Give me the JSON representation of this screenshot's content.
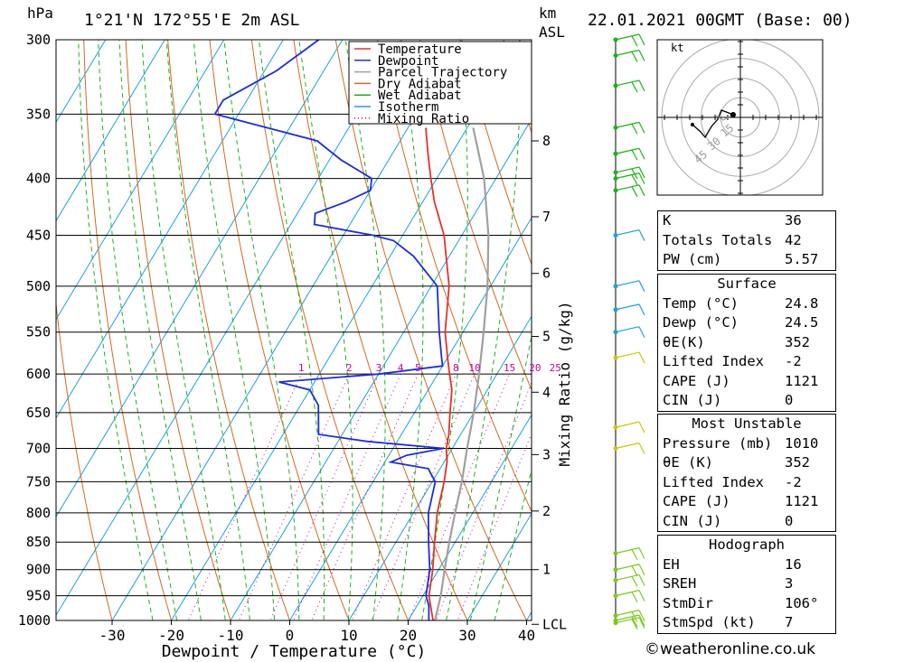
{
  "header": {
    "location": "1°21'N  172°55'E  2m  ASL",
    "datetime": "22.01.2021  00GMT  (Base: 00)",
    "left_unit": "hPa",
    "right_unit_top": "km",
    "right_unit_bottom": "ASL"
  },
  "colors": {
    "temperature": "#e8302a",
    "dewpoint": "#1b2fd8",
    "parcel": "#a0a0a0",
    "dry_adiabat": "#d2691e",
    "wet_adiabat": "#19b219",
    "isotherm": "#1ca0dc",
    "mixing_ratio": "#c000a0"
  },
  "chart_data": {
    "type": "line",
    "subtype": "skew-T log-p sounding",
    "xlabel": "Dewpoint / Temperature (°C)",
    "ylabel_left": "hPa",
    "ylabel_right": "Mixing Ratio (g/kg)",
    "xlim": [
      -40,
      40
    ],
    "ylim": [
      1000,
      300
    ],
    "pressure_ticks": [
      300,
      350,
      400,
      450,
      500,
      550,
      600,
      650,
      700,
      750,
      800,
      850,
      900,
      950,
      1000
    ],
    "temperature_ticks": [
      -30,
      -20,
      -10,
      0,
      10,
      20,
      30,
      40
    ],
    "km_ticks": [
      {
        "label": "8",
        "p": 370
      },
      {
        "label": "7",
        "p": 433
      },
      {
        "label": "6",
        "p": 487
      },
      {
        "label": "5",
        "p": 555
      },
      {
        "label": "4",
        "p": 623
      },
      {
        "label": "3",
        "p": 709
      },
      {
        "label": "2",
        "p": 797
      },
      {
        "label": "1",
        "p": 900
      },
      {
        "label": "LCL",
        "p": 1008
      }
    ],
    "mixing_ratio_labels": [
      "1",
      "2",
      "3",
      "4",
      "5",
      "8",
      "10",
      "15",
      "20",
      "25"
    ],
    "mixing_ratio_values": [
      1,
      2,
      3,
      4,
      5,
      8,
      10,
      15,
      20,
      25
    ],
    "legend": [
      "Temperature",
      "Dewpoint",
      "Parcel Trajectory",
      "Dry Adiabat",
      "Wet Adiabat",
      "Isotherm",
      "Mixing Ratio"
    ],
    "series": [
      {
        "name": "Temperature",
        "points": [
          [
            1010,
            24.8
          ],
          [
            1000,
            24.2
          ],
          [
            950,
            21
          ],
          [
            900,
            19
          ],
          [
            850,
            16.5
          ],
          [
            800,
            14
          ],
          [
            750,
            12
          ],
          [
            720,
            10.5
          ],
          [
            700,
            9
          ],
          [
            680,
            8
          ],
          [
            650,
            6
          ],
          [
            620,
            4
          ],
          [
            600,
            2
          ],
          [
            580,
            0
          ],
          [
            550,
            -3
          ],
          [
            500,
            -7
          ],
          [
            450,
            -13
          ],
          [
            420,
            -18
          ],
          [
            400,
            -21
          ],
          [
            380,
            -24
          ],
          [
            360,
            -27
          ]
        ]
      },
      {
        "name": "Dewpoint",
        "points": [
          [
            1010,
            24.5
          ],
          [
            1000,
            23.5
          ],
          [
            970,
            22
          ],
          [
            950,
            20.5
          ],
          [
            900,
            18.5
          ],
          [
            850,
            15.5
          ],
          [
            800,
            12.5
          ],
          [
            750,
            10.5
          ],
          [
            730,
            8
          ],
          [
            720,
            1
          ],
          [
            710,
            3
          ],
          [
            700,
            8.5
          ],
          [
            690,
            -5
          ],
          [
            680,
            -14
          ],
          [
            640,
            -17
          ],
          [
            620,
            -20
          ],
          [
            610,
            -26
          ],
          [
            600,
            -10
          ],
          [
            590,
            0
          ],
          [
            580,
            -1
          ],
          [
            550,
            -4
          ],
          [
            500,
            -9
          ],
          [
            470,
            -16
          ],
          [
            455,
            -21
          ],
          [
            450,
            -25
          ],
          [
            440,
            -36
          ],
          [
            430,
            -37
          ],
          [
            420,
            -33
          ],
          [
            410,
            -30
          ],
          [
            400,
            -31
          ],
          [
            385,
            -38
          ],
          [
            370,
            -44
          ],
          [
            350,
            -64
          ],
          [
            340,
            -64
          ],
          [
            320,
            -58
          ],
          [
            300,
            -54
          ]
        ]
      },
      {
        "name": "Parcel Trajectory",
        "points": [
          [
            1010,
            24.8
          ],
          [
            950,
            23
          ],
          [
            900,
            21
          ],
          [
            850,
            19
          ],
          [
            800,
            17
          ],
          [
            750,
            15
          ],
          [
            700,
            12.5
          ],
          [
            650,
            10
          ],
          [
            600,
            7
          ],
          [
            550,
            3.5
          ],
          [
            500,
            -0.5
          ],
          [
            450,
            -5.5
          ],
          [
            400,
            -12
          ],
          [
            360,
            -19
          ]
        ]
      }
    ],
    "wind_barbs_pressures": [
      300,
      310,
      330,
      360,
      380,
      395,
      400,
      410,
      450,
      500,
      525,
      550,
      580,
      670,
      700,
      870,
      900,
      920,
      950,
      990,
      1000,
      1005
    ]
  },
  "hodograph": {
    "unit": "kt",
    "ring_labels": [
      "15",
      "30",
      "45"
    ]
  },
  "indices": {
    "general": [
      {
        "label": "K",
        "value": "36"
      },
      {
        "label": "Totals Totals",
        "value": "42"
      },
      {
        "label": "PW (cm)",
        "value": "5.57"
      }
    ],
    "surface_title": "Surface",
    "surface": [
      {
        "label": "Temp (°C)",
        "value": "24.8"
      },
      {
        "label": "Dewp (°C)",
        "value": "24.5"
      },
      {
        "label": "θE(K)",
        "value": "352"
      },
      {
        "label": "Lifted Index",
        "value": "-2"
      },
      {
        "label": "CAPE (J)",
        "value": "1121"
      },
      {
        "label": "CIN (J)",
        "value": "0"
      }
    ],
    "unstable_title": "Most Unstable",
    "unstable": [
      {
        "label": "Pressure (mb)",
        "value": "1010"
      },
      {
        "label": "θE (K)",
        "value": "352"
      },
      {
        "label": "Lifted Index",
        "value": "-2"
      },
      {
        "label": "CAPE (J)",
        "value": "1121"
      },
      {
        "label": "CIN (J)",
        "value": "0"
      }
    ],
    "hodograph_title": "Hodograph",
    "hodo": [
      {
        "label": "EH",
        "value": "16"
      },
      {
        "label": "SREH",
        "value": "3"
      },
      {
        "label": "StmDir",
        "value": "106°"
      },
      {
        "label": "StmSpd (kt)",
        "value": "7"
      }
    ]
  },
  "credit": "©weatheronline.co.uk"
}
